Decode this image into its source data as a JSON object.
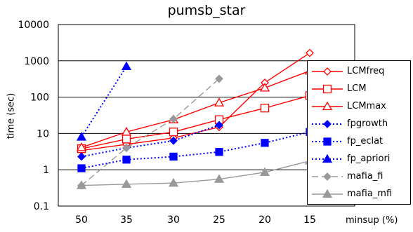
{
  "chart_data": {
    "type": "line",
    "title": "pumsb_star",
    "xlabel": "minsup (%)",
    "ylabel": "time (sec)",
    "categories": [
      "50",
      "35",
      "30",
      "25",
      "20",
      "15"
    ],
    "yscale": "log",
    "ylim": [
      0.1,
      10000
    ],
    "y_ticks": [
      "0.1",
      "1",
      "10",
      "100",
      "1000",
      "10000"
    ],
    "grid": "horizontal",
    "legend_position": "right",
    "series": [
      {
        "name": "LCMfreq",
        "color": "#ff0000",
        "marker": "diamond-open",
        "line": "solid",
        "values": [
          3.4,
          5,
          7.5,
          15,
          250,
          1650
        ]
      },
      {
        "name": "LCM",
        "color": "#ff0000",
        "marker": "square-open",
        "line": "solid",
        "values": [
          3.8,
          7,
          11,
          24,
          50,
          110
        ]
      },
      {
        "name": "LCMmax",
        "color": "#ff0000",
        "marker": "triangle-open",
        "line": "solid",
        "values": [
          4.1,
          11,
          24,
          70,
          180,
          530
        ]
      },
      {
        "name": "fpgrowth",
        "color": "#0000ff",
        "marker": "diamond-filled",
        "line": "dotted",
        "values": [
          2.3,
          4,
          6.3,
          17,
          null,
          null
        ]
      },
      {
        "name": "fp_eclat",
        "color": "#0000ff",
        "marker": "square-filled",
        "line": "dotted",
        "values": [
          1.1,
          1.9,
          2.3,
          3.1,
          5.5,
          11
        ]
      },
      {
        "name": "fp_apriori",
        "color": "#0000ff",
        "marker": "triangle-filled",
        "line": "dotted",
        "values": [
          8,
          700,
          null,
          null,
          null,
          null
        ]
      },
      {
        "name": "mafia_fi",
        "color": "#999999",
        "marker": "diamond-filled",
        "line": "dashed",
        "values": [
          0.37,
          4,
          25,
          320,
          null,
          null
        ]
      },
      {
        "name": "mafia_mfi",
        "color": "#999999",
        "marker": "triangle-filled",
        "line": "solid",
        "values": [
          0.37,
          0.4,
          0.43,
          0.55,
          0.85,
          1.75
        ]
      }
    ]
  }
}
